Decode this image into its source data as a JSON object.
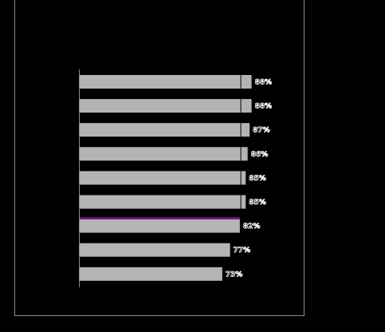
{
  "chart_data": {
    "type": "bar",
    "orientation": "horizontal",
    "title": "",
    "xlabel": "",
    "ylabel": "",
    "categories": [
      "",
      "",
      "",
      "",
      "",
      "",
      "",
      "",
      ""
    ],
    "values": [
      88,
      88,
      87,
      86,
      85,
      85,
      82,
      77,
      73
    ],
    "labels": [
      "88%",
      "88%",
      "87%",
      "86%",
      "85%",
      "85%",
      "82%",
      "77%",
      "73%"
    ],
    "xlim": [
      0,
      100
    ],
    "grid": false,
    "legend": "none",
    "colors": {
      "background": "#000000",
      "bar": "#b4b4b4",
      "accent_line": "#c800c8",
      "frame": "#8a8a8a"
    }
  }
}
